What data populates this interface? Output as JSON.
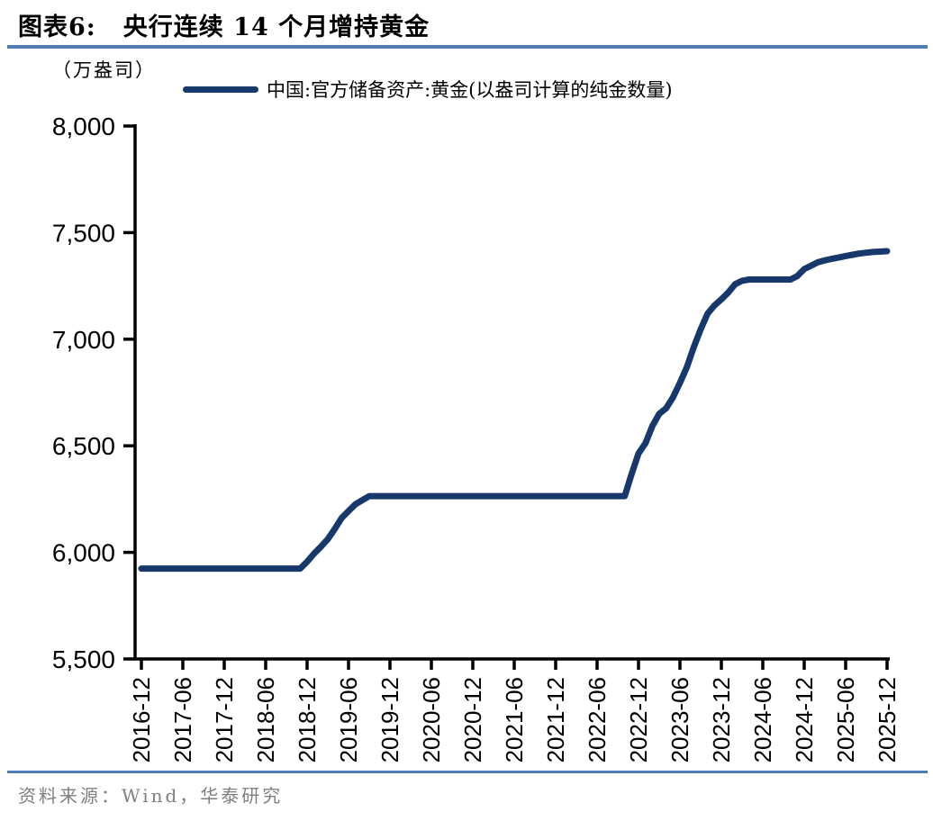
{
  "figure": {
    "title_prefix": "图表6:",
    "title_text": "央行连续 14 个月增持黄金",
    "unit_label": "（万盎司）",
    "legend_label": "中国:官方储备资产:黄金(以盎司计算的纯金数量)",
    "source_text": "资料来源：Wind，华泰研究"
  },
  "colors": {
    "line": "#17386B",
    "rule": "#4F7DB3",
    "axis": "#000000",
    "tick_text": "#000000",
    "source_text": "#7f7f7f"
  },
  "chart_data": {
    "type": "line",
    "title": "央行连续 14 个月增持黄金",
    "xlabel": "",
    "ylabel": "万盎司",
    "series_name": "中国:官方储备资产:黄金(以盎司计算的纯金数量)",
    "legend_position": "top",
    "grid": false,
    "ylim": [
      5500,
      8000
    ],
    "y_ticks": [
      {
        "value": 5500,
        "label": "5,500"
      },
      {
        "value": 6000,
        "label": "6,000"
      },
      {
        "value": 6500,
        "label": "6,500"
      },
      {
        "value": 7000,
        "label": "7,000"
      },
      {
        "value": 7500,
        "label": "7,500"
      },
      {
        "value": 8000,
        "label": "8,000"
      }
    ],
    "x_tick_every": 6,
    "x_tick_labels": [
      "2016-12",
      "2017-06",
      "2017-12",
      "2018-06",
      "2018-12",
      "2019-06",
      "2019-12",
      "2020-06",
      "2020-12",
      "2021-06",
      "2021-12",
      "2022-06",
      "2022-12",
      "2023-06",
      "2023-12",
      "2024-06",
      "2024-12",
      "2025-06",
      "2025-12"
    ],
    "months": [
      "2016-12",
      "2017-01",
      "2017-02",
      "2017-03",
      "2017-04",
      "2017-05",
      "2017-06",
      "2017-07",
      "2017-08",
      "2017-09",
      "2017-10",
      "2017-11",
      "2017-12",
      "2018-01",
      "2018-02",
      "2018-03",
      "2018-04",
      "2018-05",
      "2018-06",
      "2018-07",
      "2018-08",
      "2018-09",
      "2018-10",
      "2018-11",
      "2018-12",
      "2019-01",
      "2019-02",
      "2019-03",
      "2019-04",
      "2019-05",
      "2019-06",
      "2019-07",
      "2019-08",
      "2019-09",
      "2019-10",
      "2019-11",
      "2019-12",
      "2020-01",
      "2020-02",
      "2020-03",
      "2020-04",
      "2020-05",
      "2020-06",
      "2020-07",
      "2020-08",
      "2020-09",
      "2020-10",
      "2020-11",
      "2020-12",
      "2021-01",
      "2021-02",
      "2021-03",
      "2021-04",
      "2021-05",
      "2021-06",
      "2021-07",
      "2021-08",
      "2021-09",
      "2021-10",
      "2021-11",
      "2021-12",
      "2022-01",
      "2022-02",
      "2022-03",
      "2022-04",
      "2022-05",
      "2022-06",
      "2022-07",
      "2022-08",
      "2022-09",
      "2022-10",
      "2022-11",
      "2022-12",
      "2023-01",
      "2023-02",
      "2023-03",
      "2023-04",
      "2023-05",
      "2023-06",
      "2023-07",
      "2023-08",
      "2023-09",
      "2023-10",
      "2023-11",
      "2023-12",
      "2024-01",
      "2024-02",
      "2024-03",
      "2024-04",
      "2024-05",
      "2024-06",
      "2024-07",
      "2024-08",
      "2024-09",
      "2024-10",
      "2024-11",
      "2024-12",
      "2025-01",
      "2025-02",
      "2025-03",
      "2025-04",
      "2025-05",
      "2025-06",
      "2025-07",
      "2025-08",
      "2025-09",
      "2025-10",
      "2025-11",
      "2025-12"
    ],
    "values": [
      5924,
      5924,
      5924,
      5924,
      5924,
      5924,
      5924,
      5924,
      5924,
      5924,
      5924,
      5924,
      5924,
      5924,
      5924,
      5924,
      5924,
      5924,
      5924,
      5924,
      5924,
      5924,
      5924,
      5924,
      5956,
      5994,
      6026,
      6062,
      6110,
      6161,
      6194,
      6226,
      6245,
      6264,
      6264,
      6264,
      6264,
      6264,
      6264,
      6264,
      6264,
      6264,
      6264,
      6264,
      6264,
      6264,
      6264,
      6264,
      6264,
      6264,
      6264,
      6264,
      6264,
      6264,
      6264,
      6264,
      6264,
      6264,
      6264,
      6264,
      6264,
      6264,
      6264,
      6264,
      6264,
      6264,
      6264,
      6264,
      6264,
      6264,
      6264,
      6367,
      6464,
      6512,
      6592,
      6650,
      6676,
      6727,
      6795,
      6869,
      6962,
      7046,
      7120,
      7158,
      7187,
      7219,
      7258,
      7274,
      7280,
      7280,
      7280,
      7280,
      7280,
      7280,
      7280,
      7296,
      7329,
      7345,
      7361,
      7370,
      7377,
      7383,
      7390,
      7396,
      7402,
      7406,
      7409,
      7411,
      7413
    ]
  }
}
